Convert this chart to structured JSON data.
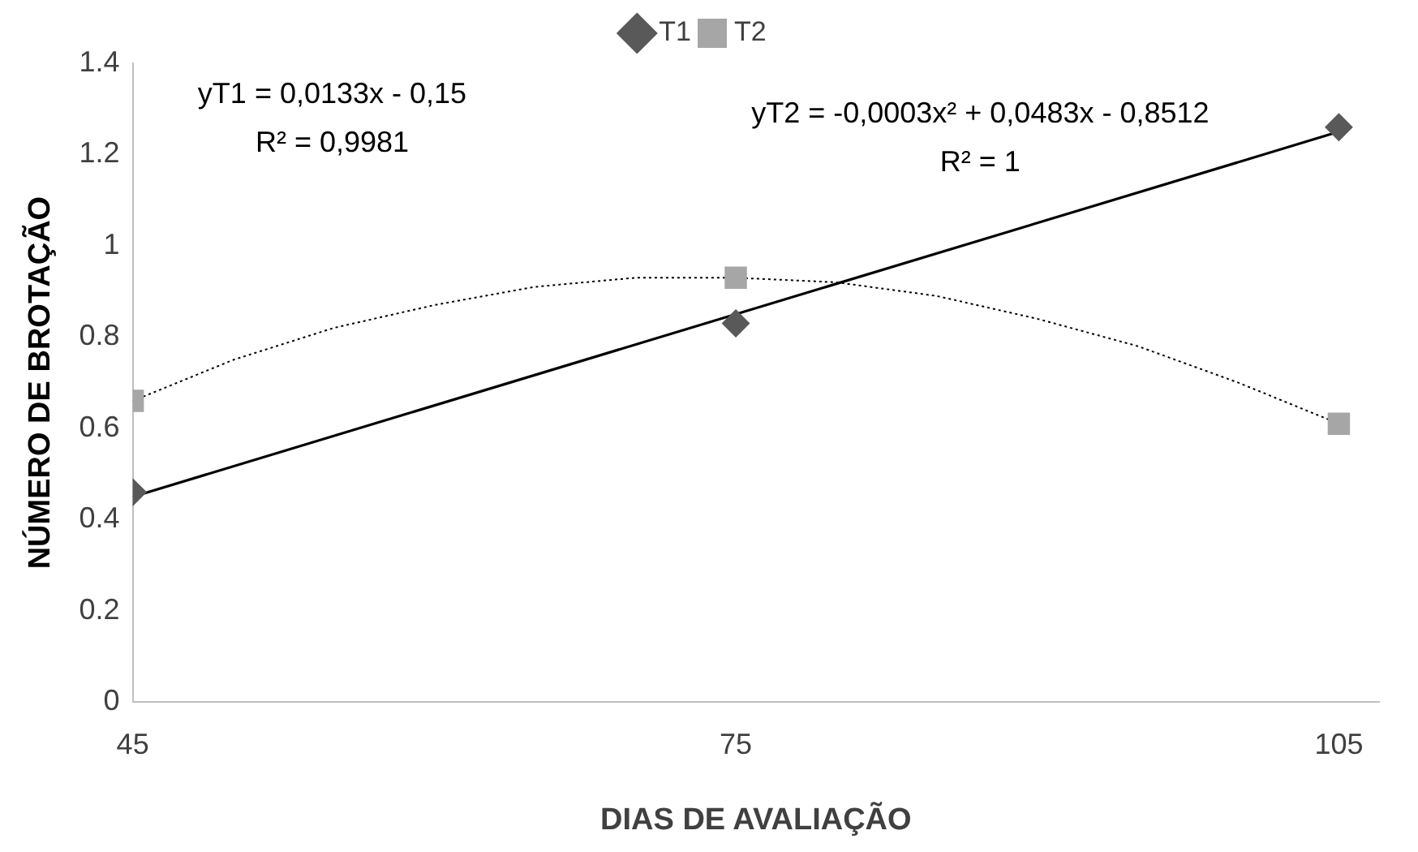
{
  "chart_data": {
    "type": "scatter",
    "xlabel": "DIAS DE AVALIAÇÃO",
    "ylabel": "NÚMERO DE BROTAÇÃO",
    "xlim": [
      45,
      107
    ],
    "xticks": [
      45,
      75,
      105
    ],
    "ylim": [
      0,
      1.4
    ],
    "yticks": [
      0,
      0.2,
      0.4,
      0.6,
      0.8,
      1,
      1.2,
      1.4
    ],
    "grid": false,
    "legend": "top",
    "series": [
      {
        "name": "T1",
        "color": "#595959",
        "marker": "diamond",
        "x": [
          45,
          75,
          105
        ],
        "values": [
          0.46,
          0.83,
          1.26
        ]
      },
      {
        "name": "T2",
        "color": "#a6a6a6",
        "marker": "square",
        "x": [
          45,
          75,
          105
        ],
        "values": [
          0.66,
          0.93,
          0.61
        ]
      },
      {
        "type": "line",
        "color": "#000000",
        "line_style": "solid",
        "marker": "none",
        "x": [
          45,
          105
        ],
        "values": [
          0.45,
          1.25
        ]
      },
      {
        "type": "line",
        "color": "#000000",
        "line_style": "dotted",
        "marker": "none",
        "x": [
          45,
          50,
          55,
          60,
          65,
          70,
          75,
          80,
          85,
          90,
          95,
          100,
          105
        ],
        "values": [
          0.66,
          0.75,
          0.82,
          0.87,
          0.91,
          0.93,
          0.93,
          0.92,
          0.89,
          0.84,
          0.78,
          0.7,
          0.61
        ]
      }
    ],
    "annotations": [
      "yT1 = 0,0133x - 0,15\nR² = 0,9981",
      "yT2 = -0,0003x² + 0,0483x - 0,8512\nR² = 1"
    ]
  }
}
